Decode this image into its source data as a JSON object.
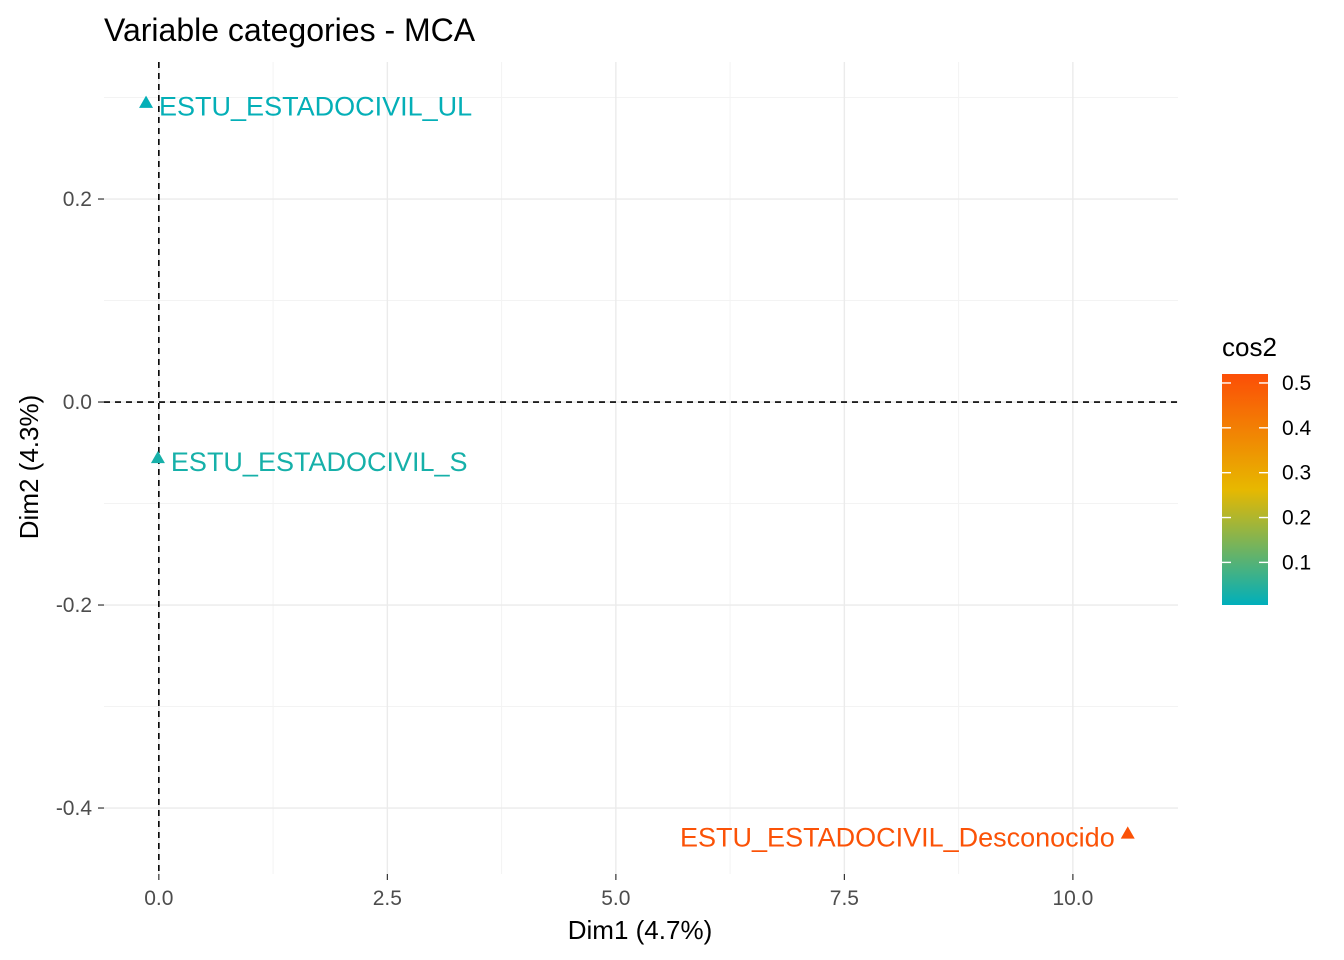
{
  "chart_data": {
    "type": "scatter",
    "title": "Variable categories - MCA",
    "xlabel": "Dim1 (4.7%)",
    "ylabel": "Dim2 (4.3%)",
    "xlim": [
      -0.6,
      11.15
    ],
    "ylim": [
      -0.465,
      0.335
    ],
    "x_ticks": [
      0.0,
      2.5,
      5.0,
      7.5,
      10.0
    ],
    "x_tick_labels": [
      "0.0",
      "2.5",
      "5.0",
      "7.5",
      "10.0"
    ],
    "y_ticks": [
      0.2,
      0.0,
      -0.2,
      -0.4
    ],
    "y_tick_labels": [
      "0.2",
      "0.0",
      "-0.2",
      "-0.4"
    ],
    "grid": true,
    "reference_lines": {
      "x": 0,
      "y": 0,
      "style": "dashed"
    },
    "points": [
      {
        "label": "ESTU_ESTADOCIVIL_UL",
        "x": -0.14,
        "y": 0.295,
        "cos2": 0.01,
        "label_side": "right"
      },
      {
        "label": "ESTU_ESTADOCIVIL_S",
        "x": -0.01,
        "y": -0.055,
        "cos2": 0.03,
        "label_side": "right"
      },
      {
        "label": "ESTU_ESTADOCIVIL_Desconocido",
        "x": 10.6,
        "y": -0.425,
        "cos2": 0.51,
        "label_side": "left"
      }
    ],
    "legend": {
      "title": "cos2",
      "placement": "right",
      "range": [
        0.005,
        0.52
      ],
      "ticks": [
        0.1,
        0.2,
        0.3,
        0.4,
        0.5
      ],
      "tick_labels": [
        "0.1",
        "0.2",
        "0.3",
        "0.4",
        "0.5"
      ],
      "gradient": [
        "#00AFBB",
        "#E7B800",
        "#FC4E07"
      ]
    }
  }
}
